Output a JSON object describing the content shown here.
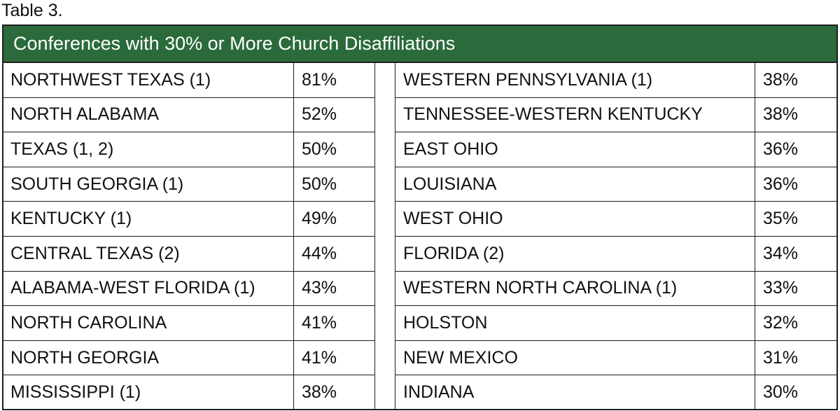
{
  "caption": "Table 3.",
  "table": {
    "title": "Conferences with 30% or More Church Disaffiliations",
    "left": [
      [
        "NORTHWEST TEXAS (1)",
        "81%"
      ],
      [
        "NORTH ALABAMA",
        "52%"
      ],
      [
        "TEXAS (1, 2)",
        "50%"
      ],
      [
        "SOUTH GEORGIA (1)",
        "50%"
      ],
      [
        "KENTUCKY (1)",
        "49%"
      ],
      [
        "CENTRAL TEXAS (2)",
        "44%"
      ],
      [
        "ALABAMA-WEST FLORIDA (1)",
        "43%"
      ],
      [
        "NORTH CAROLINA",
        "41%"
      ],
      [
        "NORTH GEORGIA",
        "41%"
      ],
      [
        "MISSISSIPPI (1)",
        "38%"
      ]
    ],
    "right": [
      [
        "WESTERN PENNSYLVANIA (1)",
        "38%"
      ],
      [
        "TENNESSEE-WESTERN KENTUCKY",
        "38%"
      ],
      [
        "EAST OHIO",
        "36%"
      ],
      [
        "LOUISIANA",
        "36%"
      ],
      [
        "WEST OHIO",
        "35%"
      ],
      [
        "FLORIDA (2)",
        "34%"
      ],
      [
        "WESTERN NORTH CAROLINA (1)",
        "33%"
      ],
      [
        "HOLSTON",
        "32%"
      ],
      [
        "NEW MEXICO",
        "31%"
      ],
      [
        "INDIANA",
        "30%"
      ]
    ]
  }
}
